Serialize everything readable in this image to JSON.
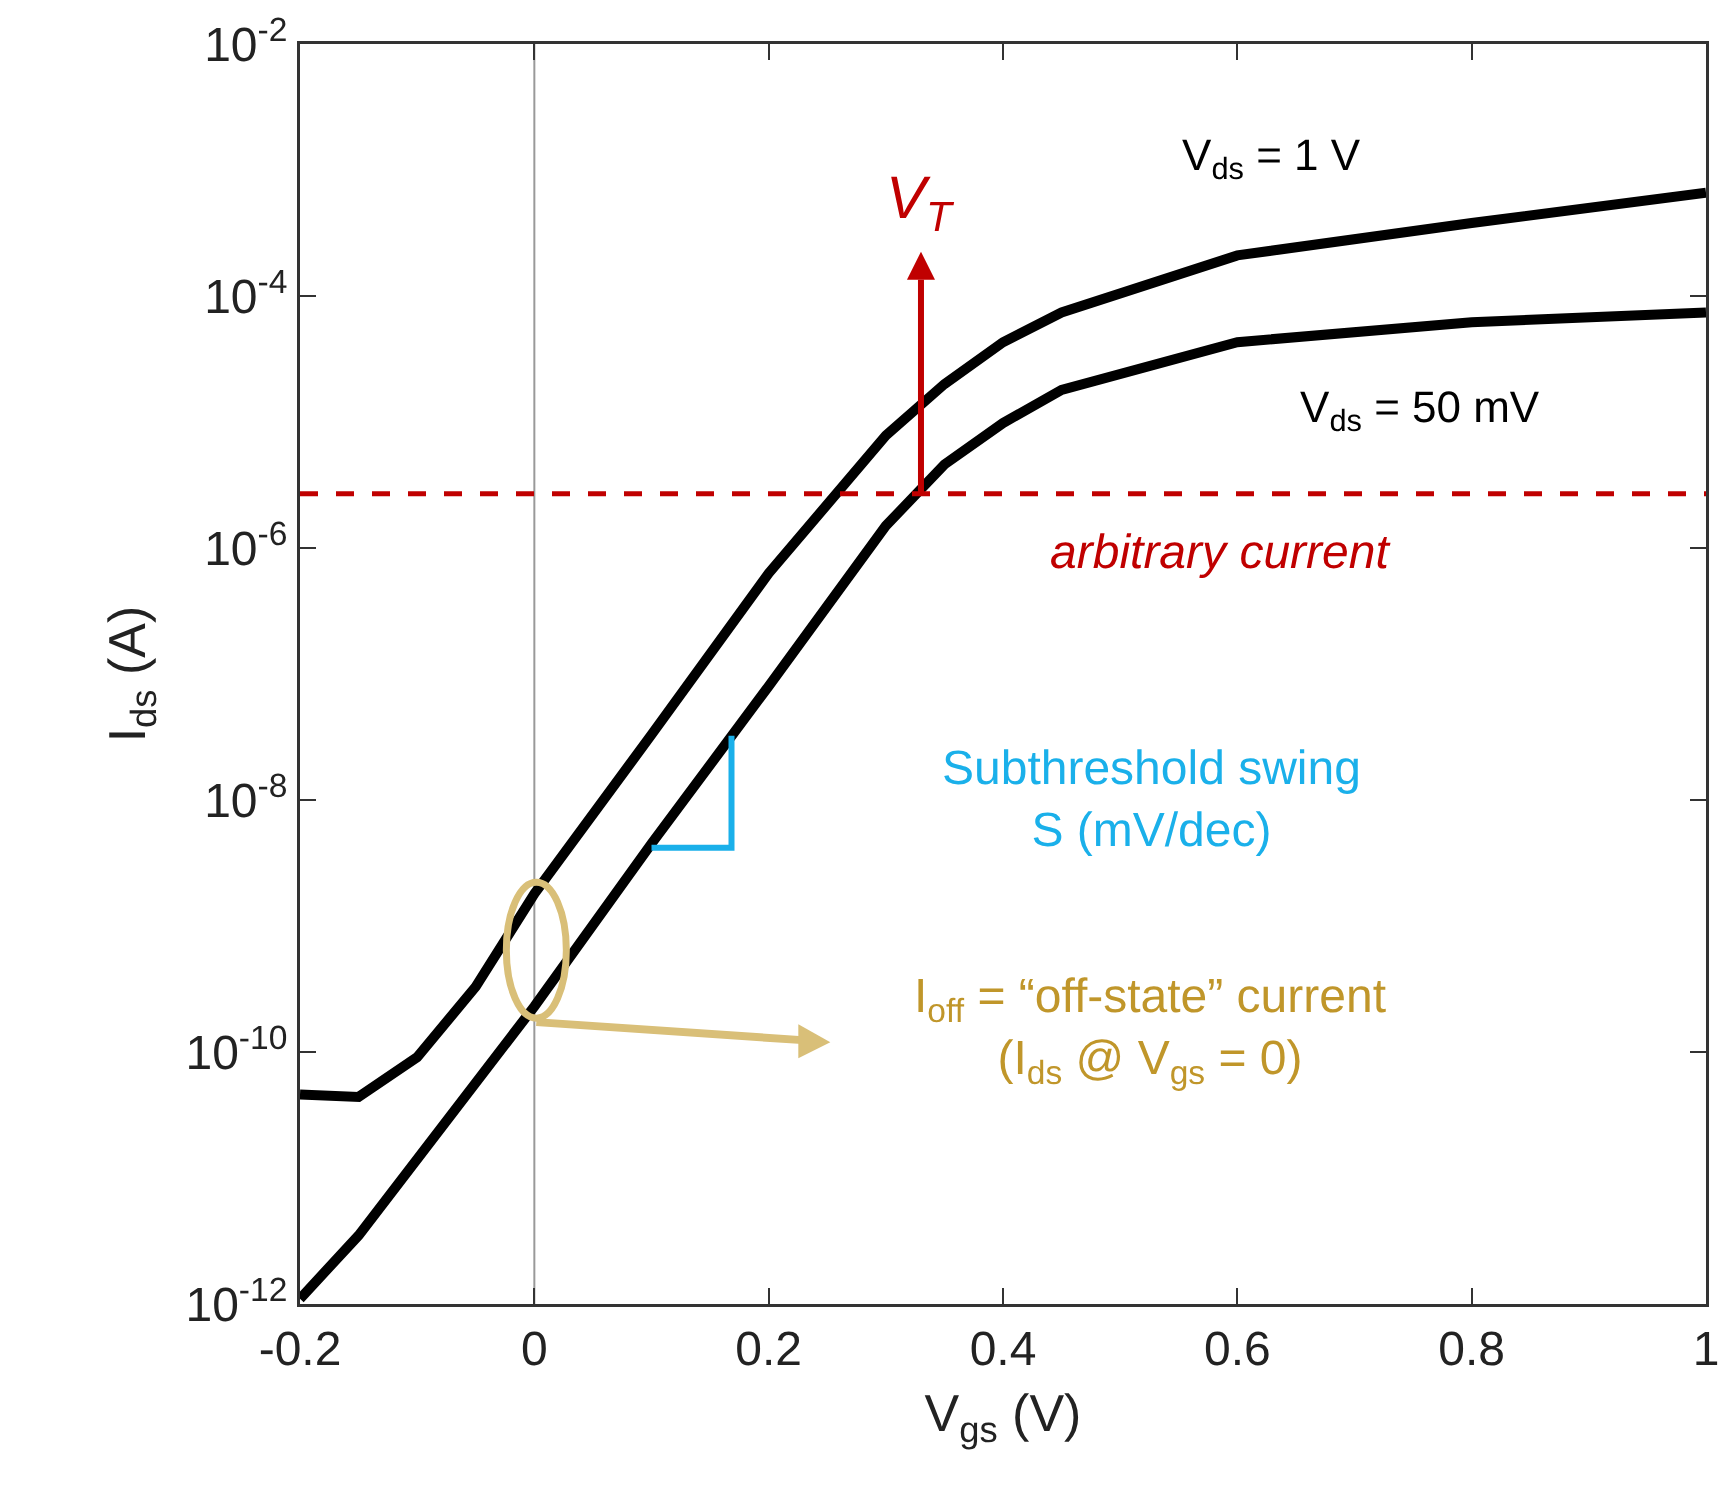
{
  "chart_data": {
    "type": "line",
    "xlabel": "V$_{gs}$ (V)",
    "ylabel": "I$_{ds}$ (A)",
    "x": [
      -0.2,
      -0.15,
      -0.1,
      -0.05,
      0,
      0.1,
      0.2,
      0.3,
      0.35,
      0.4,
      0.45,
      0.6,
      0.8,
      1
    ],
    "series": [
      {
        "name": "V$_{ds}$ = 1 V",
        "color": "#000000",
        "values": [
          4.6e-11,
          4.4e-11,
          9.1e-11,
          3.3e-10,
          1.8e-09,
          3.3e-08,
          6.3e-07,
          7.8e-06,
          2e-05,
          4.3e-05,
          7.4e-05,
          0.00021,
          0.00038,
          0.00066
        ]
      },
      {
        "name": "V$_{ds}$ = 50 mV",
        "color": "#000000",
        "values": [
          1.1e-12,
          3.5e-12,
          null,
          null,
          2.3e-10,
          4.5e-09,
          8e-08,
          1.5e-06,
          4.6e-06,
          9.8e-06,
          1.8e-05,
          4.3e-05,
          6.2e-05,
          7.4e-05
        ]
      }
    ],
    "log": "y",
    "xlim": [
      -0.2,
      1
    ],
    "xticks": [
      -0.2,
      0,
      0.2,
      0.4,
      0.6,
      0.8,
      1
    ],
    "ylim": [
      1e-12,
      0.01
    ],
    "yticks": [
      {
        "value": 1e-12,
        "label": "10$^{-12}$"
      },
      {
        "value": 1e-10,
        "label": "10$^{-10}$"
      },
      {
        "value": 1e-08,
        "label": "10$^{-8}$"
      },
      {
        "value": 1e-06,
        "label": "10$^{-6}$"
      },
      {
        "value": 0.0001,
        "label": "10$^{-4}$"
      },
      {
        "value": 0.01,
        "label": "10$^{-2}$"
      }
    ],
    "grid": false,
    "legend": false,
    "marker": "none",
    "line_style": "solid",
    "ref_lines": [
      {
        "axis": "y",
        "value": 2.7e-06,
        "label": "arbitrary current",
        "color": "#c00000",
        "line_style": "dashed"
      },
      {
        "axis": "x",
        "value": 0,
        "label": null,
        "color": "#999999",
        "line_style": "solid"
      }
    ],
    "annotations": [
      {
        "text": "V$_{T}$",
        "x": 0.33,
        "y": 2.7e-06
      },
      "Subthreshold swing\nS (mV/dec)",
      "I$_{off}$ = “off-state” current\n(I$_{ds}$ @ V$_{gs}$ = 0)"
    ]
  }
}
